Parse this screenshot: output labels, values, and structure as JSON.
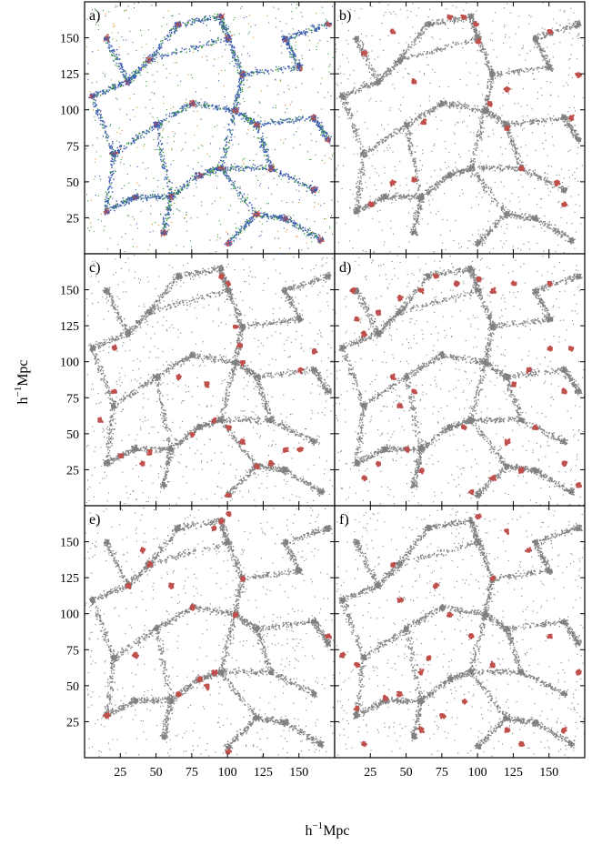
{
  "chart_data": {
    "type": "scatter",
    "description_of_layout": "3 x 2 grid of panels sharing axes",
    "xlabel": "h^{-1}Mpc",
    "ylabel": "h^{-1}Mpc",
    "xlabel_parts": {
      "base": "h",
      "sup": "−1",
      "unit": "Mpc"
    },
    "ylabel_parts": {
      "base": "h",
      "sup": "−1",
      "unit": "Mpc"
    },
    "xlim": [
      0,
      175
    ],
    "ylim": [
      0,
      175
    ],
    "x_ticks": [
      25,
      50,
      75,
      100,
      125,
      150
    ],
    "y_ticks": [
      25,
      50,
      75,
      100,
      125,
      150
    ],
    "x_tick_labels": [
      "25",
      "50",
      "75",
      "100",
      "125",
      "150"
    ],
    "y_tick_labels": [
      "25",
      "50",
      "75",
      "100",
      "125",
      "150"
    ],
    "grid": false,
    "background_color": "#808080",
    "highlight_color": "#c0504d",
    "panel_a_colors": {
      "blue": "#3a5bb0",
      "green": "#3a9a3a",
      "orange": "#e08a2a",
      "red": "#c0504d"
    },
    "panels": [
      {
        "label": "a)",
        "row": 0,
        "col": 0,
        "style": "multicolor",
        "highlight_clusters": []
      },
      {
        "label": "b)",
        "row": 0,
        "col": 1,
        "style": "gray+red",
        "highlight_clusters": [
          [
            62,
            92
          ],
          [
            55,
            52
          ],
          [
            40,
            155
          ],
          [
            98,
            160
          ],
          [
            90,
            165
          ],
          [
            155,
            50
          ],
          [
            160,
            35
          ],
          [
            165,
            95
          ],
          [
            150,
            155
          ],
          [
            120,
            88
          ],
          [
            108,
            105
          ],
          [
            120,
            115
          ],
          [
            55,
            120
          ],
          [
            40,
            50
          ],
          [
            100,
            148
          ],
          [
            80,
            165
          ],
          [
            130,
            60
          ],
          [
            170,
            125
          ],
          [
            25,
            35
          ],
          [
            20,
            140
          ]
        ]
      },
      {
        "label": "c)",
        "row": 0,
        "col": 2,
        "style": "gray+red",
        "highlight_clusters": [
          [
            95,
            160
          ],
          [
            100,
            155
          ],
          [
            105,
            125
          ],
          [
            108,
            112
          ],
          [
            110,
            100
          ],
          [
            85,
            85
          ],
          [
            90,
            60
          ],
          [
            100,
            55
          ],
          [
            110,
            45
          ],
          [
            75,
            50
          ],
          [
            40,
            30
          ],
          [
            25,
            35
          ],
          [
            45,
            38
          ],
          [
            10,
            60
          ],
          [
            20,
            80
          ],
          [
            65,
            90
          ],
          [
            140,
            40
          ],
          [
            150,
            40
          ],
          [
            120,
            28
          ],
          [
            130,
            30
          ],
          [
            100,
            8
          ],
          [
            20,
            110
          ],
          [
            150,
            95
          ],
          [
            160,
            108
          ]
        ]
      },
      {
        "label": "d)",
        "row": 1,
        "col": 1,
        "style": "gray+red",
        "highlight_clusters": [
          [
            12,
            150
          ],
          [
            15,
            130
          ],
          [
            20,
            120
          ],
          [
            30,
            135
          ],
          [
            45,
            145
          ],
          [
            60,
            150
          ],
          [
            70,
            160
          ],
          [
            85,
            155
          ],
          [
            100,
            158
          ],
          [
            110,
            150
          ],
          [
            125,
            155
          ],
          [
            150,
            155
          ],
          [
            150,
            110
          ],
          [
            165,
            110
          ],
          [
            160,
            80
          ],
          [
            135,
            95
          ],
          [
            125,
            85
          ],
          [
            40,
            90
          ],
          [
            55,
            80
          ],
          [
            45,
            70
          ],
          [
            30,
            30
          ],
          [
            20,
            20
          ],
          [
            60,
            25
          ],
          [
            50,
            40
          ],
          [
            95,
            10
          ],
          [
            110,
            20
          ],
          [
            130,
            25
          ],
          [
            160,
            30
          ],
          [
            170,
            15
          ],
          [
            90,
            55
          ],
          [
            120,
            45
          ],
          [
            140,
            55
          ]
        ]
      },
      {
        "label": "e)",
        "row": 2,
        "col": 0,
        "style": "gray+red",
        "highlight_clusters": [
          [
            95,
            165
          ],
          [
            90,
            160
          ],
          [
            100,
            170
          ],
          [
            40,
            145
          ],
          [
            45,
            135
          ],
          [
            30,
            120
          ],
          [
            75,
            105
          ],
          [
            105,
            100
          ],
          [
            110,
            125
          ],
          [
            35,
            72
          ],
          [
            90,
            60
          ],
          [
            80,
            55
          ],
          [
            85,
            50
          ],
          [
            65,
            45
          ],
          [
            15,
            30
          ],
          [
            100,
            5
          ],
          [
            170,
            85
          ],
          [
            60,
            120
          ]
        ]
      },
      {
        "label": "f)",
        "row": 2,
        "col": 1,
        "style": "gray+red",
        "highlight_clusters": [
          [
            5,
            72
          ],
          [
            15,
            65
          ],
          [
            40,
            135
          ],
          [
            45,
            110
          ],
          [
            70,
            120
          ],
          [
            80,
            100
          ],
          [
            100,
            168
          ],
          [
            120,
            158
          ],
          [
            135,
            145
          ],
          [
            110,
            125
          ],
          [
            95,
            85
          ],
          [
            110,
            65
          ],
          [
            60,
            60
          ],
          [
            65,
            70
          ],
          [
            45,
            45
          ],
          [
            35,
            42
          ],
          [
            15,
            35
          ],
          [
            20,
            10
          ],
          [
            60,
            20
          ],
          [
            75,
            30
          ],
          [
            120,
            20
          ],
          [
            130,
            10
          ],
          [
            160,
            20
          ],
          [
            170,
            60
          ],
          [
            150,
            85
          ],
          [
            90,
            40
          ]
        ]
      }
    ]
  }
}
